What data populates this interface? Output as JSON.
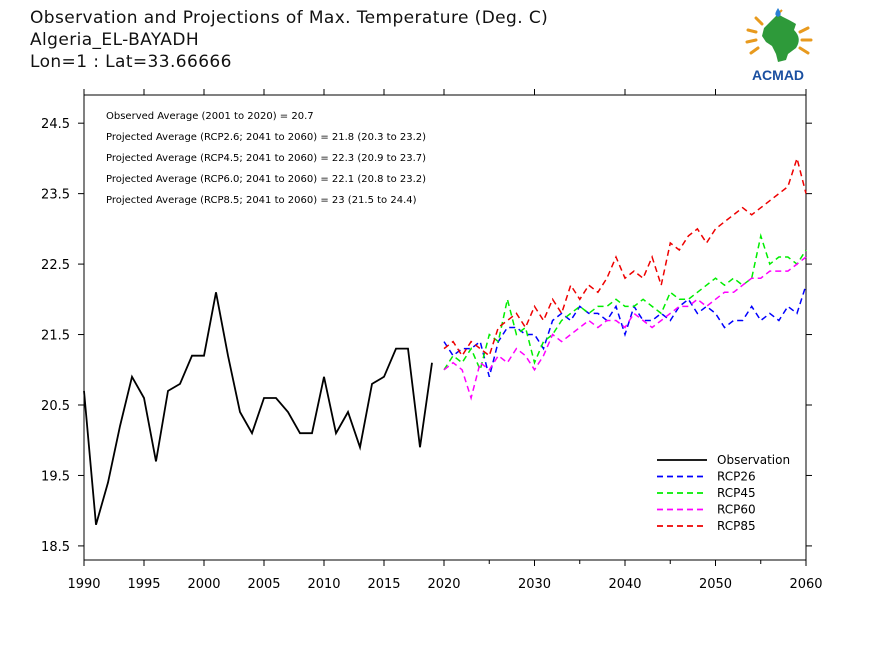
{
  "titles": [
    "Observation and Projections of Max. Temperature (Deg. C)",
    "Algeria_EL-BAYADH",
    "Lon=1 : Lat=33.66666"
  ],
  "logo": {
    "text": "ACMAD",
    "icon": "africa-map-icon"
  },
  "colors": {
    "observation": "#000000",
    "rcp26": "#0000ff",
    "rcp45": "#00ee00",
    "rcp60": "#ff00ff",
    "rcp85": "#ee0000"
  },
  "chart_data": {
    "type": "line",
    "xlim": [
      1990,
      2060
    ],
    "ylim": [
      18.3,
      24.9
    ],
    "grid": false,
    "legend_position": "bottom-right",
    "x_ticks_left": [
      "1990",
      "1995",
      "2000",
      "2005",
      "2010",
      "2015"
    ],
    "x_ticks_right": [
      "2020",
      "2030",
      "2040",
      "2050",
      "2060"
    ],
    "y_ticks": [
      "18.5",
      "19.5",
      "20.5",
      "21.5",
      "22.5",
      "23.5",
      "24.5"
    ],
    "annotations": [
      "Observed Average (2001 to 2020) = 20.7",
      "Projected Average (RCP2.6; 2041 to 2060) = 21.8 (20.3 to 23.2)",
      "Projected Average (RCP4.5; 2041 to 2060) = 22.3 (20.9 to 23.7)",
      "Projected Average (RCP6.0; 2041 to 2060) = 22.1 (20.8 to 23.2)",
      "Projected Average (RCP8.5; 2041 to 2060) = 23 (21.5 to 24.4)"
    ],
    "series": [
      {
        "name": "Observation",
        "key": "observation",
        "dash": false,
        "x": [
          1990,
          1991,
          1992,
          1993,
          1994,
          1995,
          1996,
          1997,
          1998,
          1999,
          2000,
          2001,
          2002,
          2003,
          2004,
          2005,
          2006,
          2007,
          2008,
          2009,
          2010,
          2011,
          2012,
          2013,
          2014,
          2015,
          2016,
          2017,
          2018,
          2019
        ],
        "y": [
          20.7,
          18.8,
          19.4,
          20.2,
          20.9,
          20.6,
          19.7,
          20.7,
          20.8,
          21.2,
          21.2,
          22.1,
          21.2,
          20.4,
          20.1,
          20.6,
          20.6,
          20.4,
          20.1,
          20.1,
          20.9,
          20.1,
          20.4,
          19.9,
          20.8,
          20.9,
          21.3,
          21.3,
          19.9,
          21.1
        ]
      },
      {
        "name": "RCP26",
        "key": "rcp26",
        "dash": true,
        "x": [
          2020,
          2021,
          2022,
          2023,
          2024,
          2025,
          2026,
          2027,
          2028,
          2029,
          2030,
          2031,
          2032,
          2033,
          2034,
          2035,
          2036,
          2037,
          2038,
          2039,
          2040,
          2041,
          2042,
          2043,
          2044,
          2045,
          2046,
          2047,
          2048,
          2049,
          2050,
          2051,
          2052,
          2053,
          2054,
          2055,
          2056,
          2057,
          2058,
          2059,
          2060
        ],
        "y": [
          21.4,
          21.2,
          21.3,
          21.3,
          21.4,
          20.9,
          21.4,
          21.6,
          21.6,
          21.5,
          21.5,
          21.3,
          21.7,
          21.8,
          21.7,
          21.9,
          21.8,
          21.8,
          21.7,
          21.9,
          21.5,
          21.9,
          21.7,
          21.7,
          21.8,
          21.7,
          21.9,
          22.0,
          21.8,
          21.9,
          21.8,
          21.6,
          21.7,
          21.7,
          21.9,
          21.7,
          21.8,
          21.7,
          21.9,
          21.8,
          22.2
        ]
      },
      {
        "name": "RCP45",
        "key": "rcp45",
        "dash": true,
        "x": [
          2020,
          2021,
          2022,
          2023,
          2024,
          2025,
          2026,
          2027,
          2028,
          2029,
          2030,
          2031,
          2032,
          2033,
          2034,
          2035,
          2036,
          2037,
          2038,
          2039,
          2040,
          2041,
          2042,
          2043,
          2044,
          2045,
          2046,
          2047,
          2048,
          2049,
          2050,
          2051,
          2052,
          2053,
          2054,
          2055,
          2056,
          2057,
          2058,
          2059,
          2060
        ],
        "y": [
          21.0,
          21.2,
          21.1,
          21.3,
          21.0,
          21.5,
          21.4,
          22.0,
          21.5,
          21.6,
          21.1,
          21.4,
          21.5,
          21.7,
          21.8,
          21.9,
          21.8,
          21.9,
          21.9,
          22.0,
          21.9,
          21.9,
          22.0,
          21.9,
          21.8,
          22.1,
          22.0,
          22.0,
          22.1,
          22.2,
          22.3,
          22.2,
          22.3,
          22.2,
          22.3,
          22.9,
          22.5,
          22.6,
          22.6,
          22.5,
          22.7
        ]
      },
      {
        "name": "RCP60",
        "key": "rcp60",
        "dash": true,
        "x": [
          2020,
          2021,
          2022,
          2023,
          2024,
          2025,
          2026,
          2027,
          2028,
          2029,
          2030,
          2031,
          2032,
          2033,
          2034,
          2035,
          2036,
          2037,
          2038,
          2039,
          2040,
          2041,
          2042,
          2043,
          2044,
          2045,
          2046,
          2047,
          2048,
          2049,
          2050,
          2051,
          2052,
          2053,
          2054,
          2055,
          2056,
          2057,
          2058,
          2059,
          2060
        ],
        "y": [
          21.0,
          21.1,
          21.0,
          20.6,
          21.1,
          21.0,
          21.2,
          21.1,
          21.3,
          21.2,
          21.0,
          21.2,
          21.5,
          21.4,
          21.5,
          21.6,
          21.7,
          21.6,
          21.7,
          21.7,
          21.6,
          21.8,
          21.7,
          21.6,
          21.7,
          21.8,
          21.9,
          21.9,
          22.0,
          21.9,
          22.0,
          22.1,
          22.1,
          22.2,
          22.3,
          22.3,
          22.4,
          22.4,
          22.4,
          22.5,
          22.6
        ]
      },
      {
        "name": "RCP85",
        "key": "rcp85",
        "dash": true,
        "x": [
          2020,
          2021,
          2022,
          2023,
          2024,
          2025,
          2026,
          2027,
          2028,
          2029,
          2030,
          2031,
          2032,
          2033,
          2034,
          2035,
          2036,
          2037,
          2038,
          2039,
          2040,
          2041,
          2042,
          2043,
          2044,
          2045,
          2046,
          2047,
          2048,
          2049,
          2050,
          2051,
          2052,
          2053,
          2054,
          2055,
          2056,
          2057,
          2058,
          2059,
          2060
        ],
        "y": [
          21.3,
          21.4,
          21.2,
          21.4,
          21.3,
          21.2,
          21.6,
          21.7,
          21.8,
          21.6,
          21.9,
          21.7,
          22.0,
          21.8,
          22.2,
          22.0,
          22.2,
          22.1,
          22.3,
          22.6,
          22.3,
          22.4,
          22.3,
          22.6,
          22.2,
          22.8,
          22.7,
          22.9,
          23.0,
          22.8,
          23.0,
          23.1,
          23.2,
          23.3,
          23.2,
          23.3,
          23.4,
          23.5,
          23.6,
          24.0,
          23.5
        ]
      }
    ]
  }
}
